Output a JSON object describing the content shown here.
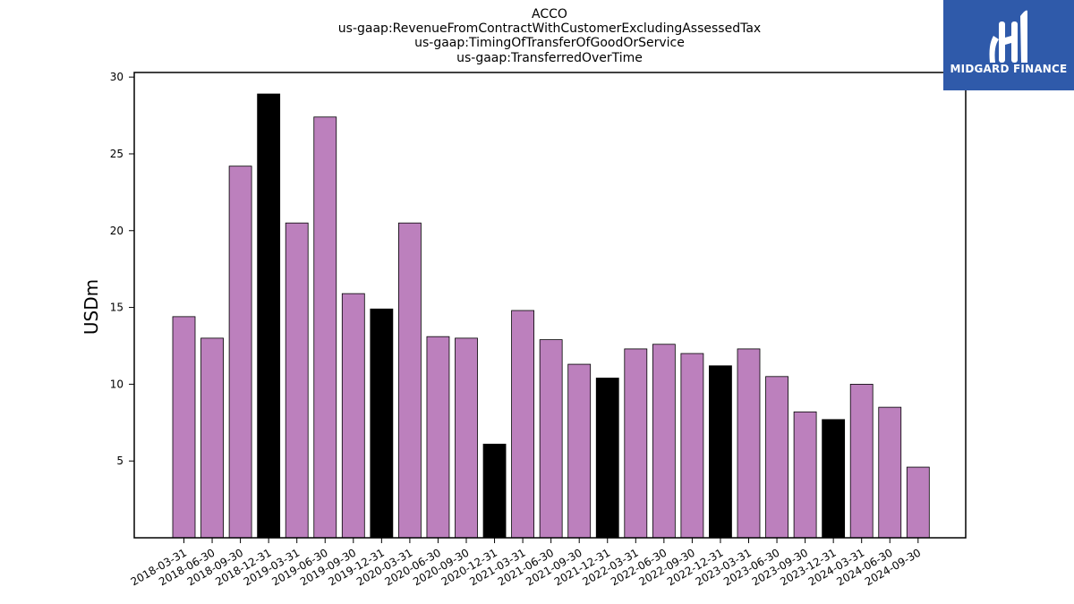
{
  "chart_data": {
    "type": "bar",
    "title": [
      "ACCO",
      "us-gaap:RevenueFromContractWithCustomerExcludingAssessedTax",
      "us-gaap:TimingOfTransferOfGoodOrService",
      "us-gaap:TransferredOverTime"
    ],
    "xlabel": "",
    "ylabel": "USDm",
    "ylim": [
      0,
      30.3
    ],
    "yticks": [
      5,
      10,
      15,
      20,
      25,
      30
    ],
    "grid": false,
    "colors": {
      "default": "#bc80bd",
      "q4": "#000000",
      "edge": "#000000"
    },
    "categories": [
      "2018-03-31",
      "2018-06-30",
      "2018-09-30",
      "2018-12-31",
      "2019-03-31",
      "2019-06-30",
      "2019-09-30",
      "2019-12-31",
      "2020-03-31",
      "2020-06-30",
      "2020-09-30",
      "2020-12-31",
      "2021-03-31",
      "2021-06-30",
      "2021-09-30",
      "2021-12-31",
      "2022-03-31",
      "2022-06-30",
      "2022-09-30",
      "2022-12-31",
      "2023-03-31",
      "2023-06-30",
      "2023-09-30",
      "2023-12-31",
      "2024-03-31",
      "2024-06-30",
      "2024-09-30"
    ],
    "values": [
      14.4,
      13.0,
      24.2,
      28.9,
      20.5,
      27.4,
      15.9,
      14.9,
      20.5,
      13.1,
      13.0,
      6.1,
      14.8,
      12.9,
      11.3,
      10.4,
      12.3,
      12.6,
      12.0,
      11.2,
      12.3,
      10.5,
      8.2,
      7.7,
      10.0,
      8.5,
      4.6
    ]
  },
  "logo": {
    "text": "MIDGARD FINANCE",
    "color": "#2f5aaa"
  }
}
